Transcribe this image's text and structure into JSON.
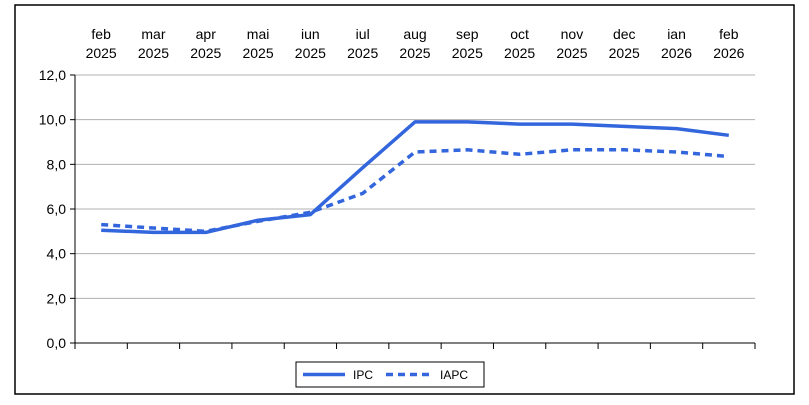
{
  "chart_data": {
    "type": "line",
    "categories": [
      [
        "feb",
        "2025"
      ],
      [
        "mar",
        "2025"
      ],
      [
        "apr",
        "2025"
      ],
      [
        "mai",
        "2025"
      ],
      [
        "iun",
        "2025"
      ],
      [
        "iul",
        "2025"
      ],
      [
        "aug",
        "2025"
      ],
      [
        "sep",
        "2025"
      ],
      [
        "oct",
        "2025"
      ],
      [
        "nov",
        "2025"
      ],
      [
        "dec",
        "2025"
      ],
      [
        "ian",
        "2026"
      ],
      [
        "feb",
        "2026"
      ]
    ],
    "series": [
      {
        "name": "IPC",
        "style": "solid",
        "color": "#3366dd",
        "values": [
          5.05,
          4.95,
          4.95,
          5.5,
          5.75,
          7.85,
          9.9,
          9.9,
          9.8,
          9.8,
          9.7,
          9.6,
          9.3
        ]
      },
      {
        "name": "IAPC",
        "style": "dashed",
        "color": "#3366dd",
        "values": [
          5.3,
          5.15,
          5.0,
          5.45,
          5.85,
          6.7,
          8.55,
          8.65,
          8.45,
          8.65,
          8.65,
          8.55,
          8.35
        ]
      }
    ],
    "ylim": [
      0,
      12
    ],
    "yticks": [
      "0,0",
      "2,0",
      "4,0",
      "6,0",
      "8,0",
      "10,0",
      "12,0"
    ],
    "ytick_values": [
      0,
      2,
      4,
      6,
      8,
      10,
      12
    ],
    "xaxis_position": "top",
    "grid": "horizontal",
    "legend_position": "bottom-center",
    "title": "",
    "xlabel": "",
    "ylabel": ""
  }
}
